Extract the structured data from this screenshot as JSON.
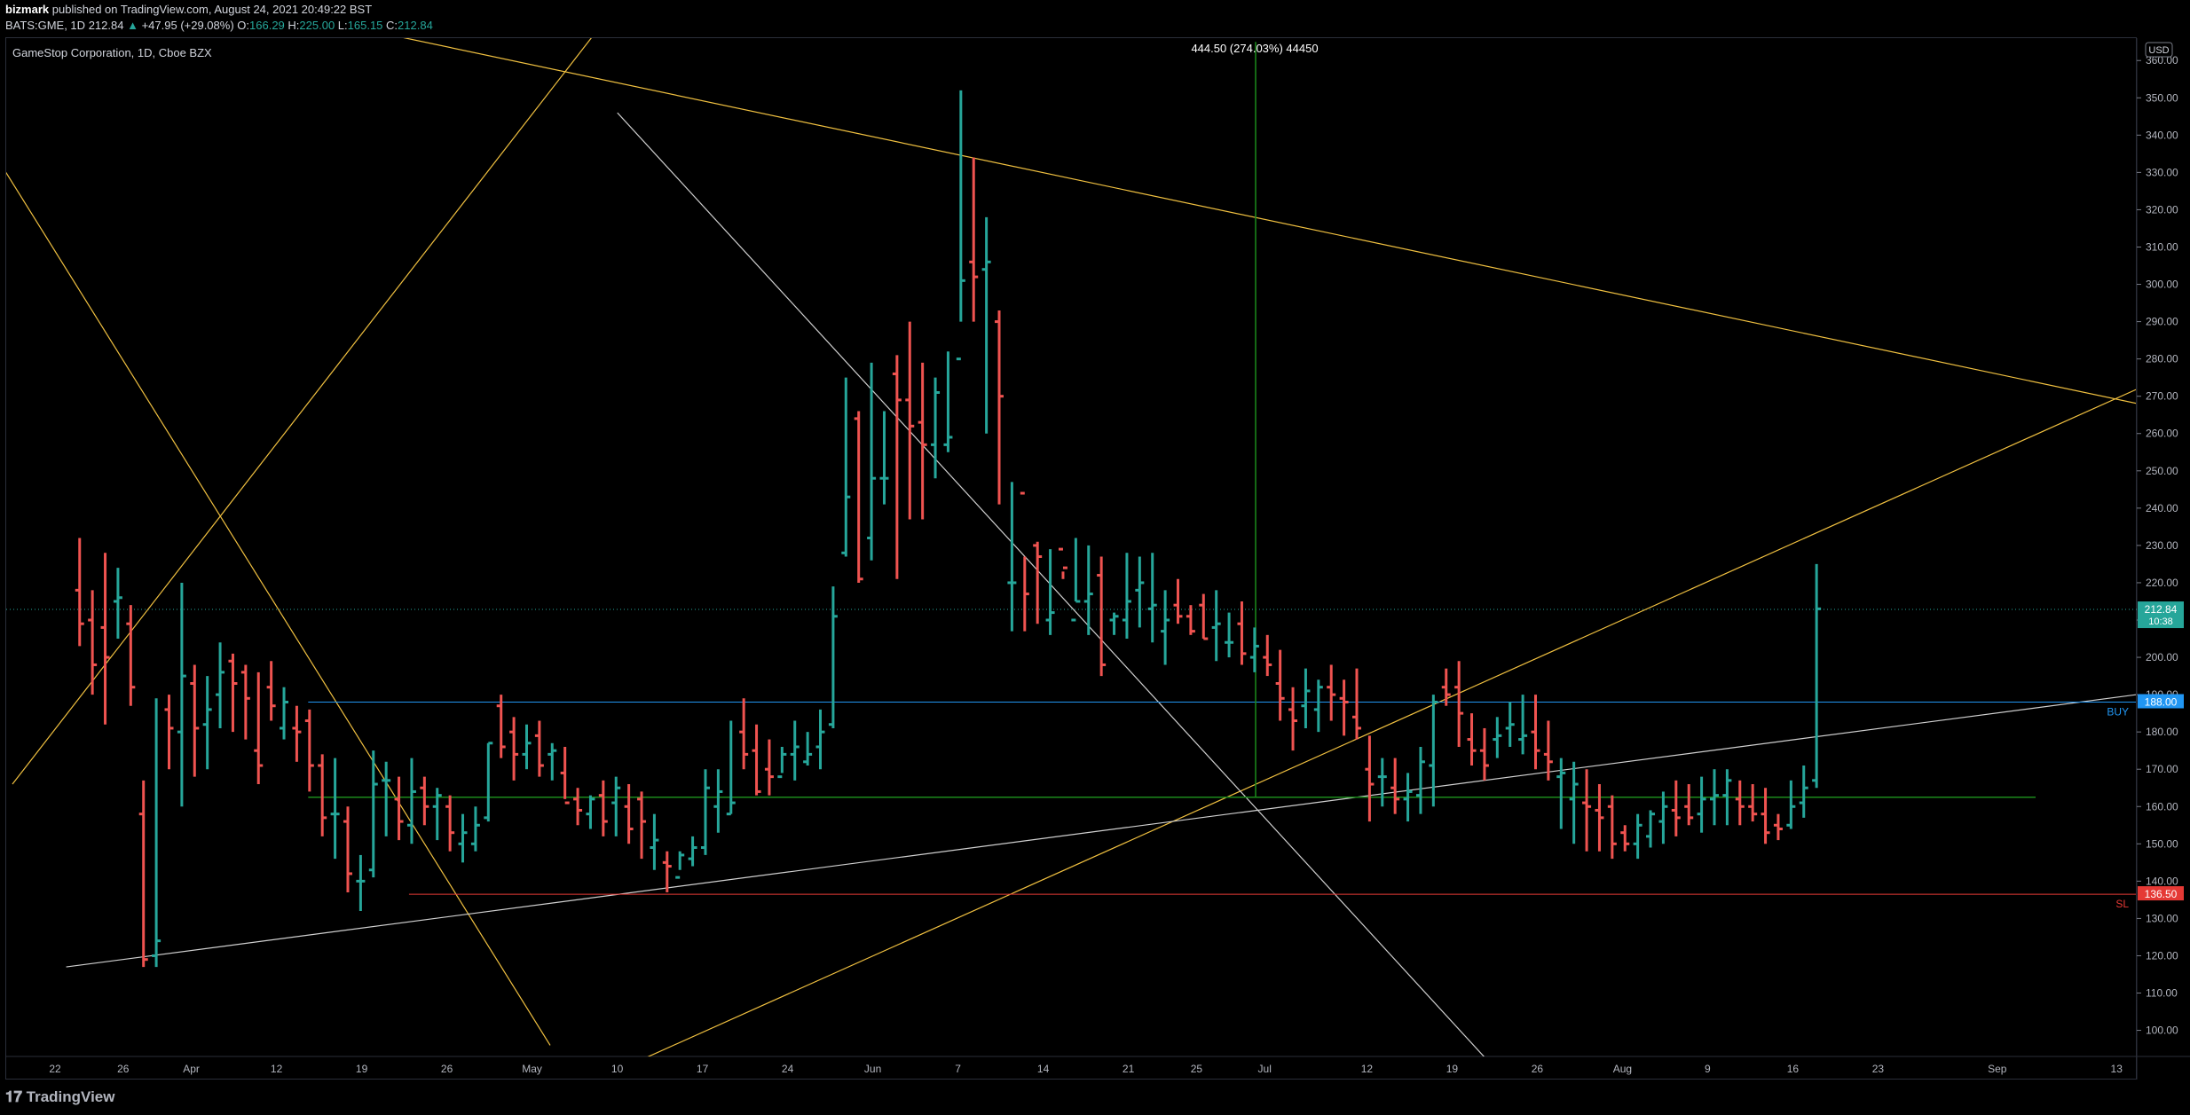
{
  "header": {
    "author": "bizmark",
    "published_text": "published on TradingView.com, August 24, 2021 20:49:22 BST",
    "symbol": "BATS:GME, 1D",
    "last": "212.84",
    "change": "+47.95 (+29.08%)",
    "open_label": "O:",
    "open": "166.29",
    "high_label": "H:",
    "high": "225.00",
    "low_label": "L:",
    "low": "165.15",
    "close_label": "C:",
    "close": "212.84"
  },
  "footer": {
    "brand": "TradingView"
  },
  "chart_data": {
    "type": "ohlc",
    "title": "GameStop Corporation, 1D, Cboe BZX",
    "currency": "USD",
    "yrange": [
      93,
      366
    ],
    "y_ticks": [
      100,
      110,
      120,
      130,
      140,
      150,
      160,
      170,
      180,
      190,
      200,
      210,
      220,
      230,
      240,
      250,
      260,
      270,
      280,
      290,
      300,
      310,
      320,
      330,
      340,
      350,
      360
    ],
    "x_ticks": [
      {
        "label": "22",
        "i": 3
      },
      {
        "label": "26",
        "i": 7
      },
      {
        "label": "Apr",
        "i": 11
      },
      {
        "label": "12",
        "i": 16
      },
      {
        "label": "19",
        "i": 21
      },
      {
        "label": "26",
        "i": 26
      },
      {
        "label": "May",
        "i": 31
      },
      {
        "label": "10",
        "i": 36
      },
      {
        "label": "17",
        "i": 41
      },
      {
        "label": "24",
        "i": 46
      },
      {
        "label": "Jun",
        "i": 51
      },
      {
        "label": "7",
        "i": 56
      },
      {
        "label": "14",
        "i": 61
      },
      {
        "label": "21",
        "i": 66
      },
      {
        "label": "25",
        "i": 70
      },
      {
        "label": "Jul",
        "i": 74
      },
      {
        "label": "12",
        "i": 80
      },
      {
        "label": "19",
        "i": 85
      },
      {
        "label": "26",
        "i": 90
      },
      {
        "label": "Aug",
        "i": 95
      },
      {
        "label": "9",
        "i": 100
      },
      {
        "label": "16",
        "i": 105
      },
      {
        "label": "23",
        "i": 110
      },
      {
        "label": "Sep",
        "i": 117
      },
      {
        "label": "13",
        "i": 124
      }
    ],
    "bars": [
      [
        218,
        232,
        203,
        209
      ],
      [
        210,
        218,
        190,
        198
      ],
      [
        208,
        228,
        182,
        200
      ],
      [
        215,
        224,
        205,
        216
      ],
      [
        209,
        214,
        187,
        192
      ],
      [
        158,
        167,
        117,
        119
      ],
      [
        120,
        189,
        117,
        124
      ],
      [
        186,
        190,
        170,
        181
      ],
      [
        180,
        220,
        160,
        195
      ],
      [
        193,
        198,
        168,
        181
      ],
      [
        182,
        195,
        170,
        186
      ],
      [
        190,
        204,
        181,
        196
      ],
      [
        199,
        201,
        180,
        193
      ],
      [
        196,
        198,
        178,
        189
      ],
      [
        175,
        196,
        166,
        171
      ],
      [
        192,
        199,
        183,
        187
      ],
      [
        181,
        192,
        178,
        188
      ],
      [
        181,
        187,
        172,
        180
      ],
      [
        183,
        186,
        164,
        171
      ],
      [
        171,
        174,
        152,
        157
      ],
      [
        158,
        173,
        146,
        158
      ],
      [
        156,
        160,
        137,
        142
      ],
      [
        140,
        147,
        132,
        140
      ],
      [
        143,
        175,
        141,
        166
      ],
      [
        167,
        172,
        152,
        167
      ],
      [
        162,
        168,
        151,
        156
      ],
      [
        155,
        173,
        150,
        164
      ],
      [
        165,
        168,
        155,
        160
      ],
      [
        160,
        165,
        151,
        163
      ],
      [
        160,
        163,
        148,
        153
      ],
      [
        150,
        158,
        145,
        153
      ],
      [
        150,
        160,
        148,
        155
      ],
      [
        157,
        177,
        156,
        177
      ],
      [
        187,
        190,
        173,
        176
      ],
      [
        180,
        184,
        167,
        174
      ],
      [
        174,
        182,
        170,
        177
      ],
      [
        179,
        183,
        168,
        171
      ],
      [
        174,
        177,
        167,
        175
      ],
      [
        169,
        176,
        162,
        161
      ],
      [
        162,
        165,
        155,
        159
      ],
      [
        158,
        163,
        154,
        162
      ],
      [
        163,
        167,
        152,
        156
      ],
      [
        161,
        168,
        152,
        165
      ],
      [
        160,
        166,
        150,
        154
      ],
      [
        162,
        164,
        146,
        156
      ],
      [
        149,
        158,
        143,
        151
      ],
      [
        145,
        148,
        137,
        144
      ],
      [
        141,
        148,
        143,
        147
      ],
      [
        146,
        152,
        144,
        149
      ],
      [
        149,
        170,
        147,
        165
      ],
      [
        160,
        170,
        153,
        164
      ],
      [
        158,
        183,
        158,
        161
      ],
      [
        180,
        189,
        170,
        174
      ],
      [
        175,
        182,
        163,
        164
      ],
      [
        170,
        178,
        163,
        168
      ],
      [
        168,
        176,
        169,
        174
      ],
      [
        174,
        183,
        167,
        176
      ],
      [
        172,
        180,
        171,
        174
      ],
      [
        176,
        186,
        170,
        180
      ],
      [
        182,
        219,
        181,
        211
      ],
      [
        228,
        275,
        227,
        243
      ],
      [
        264,
        266,
        220,
        221
      ],
      [
        232,
        279,
        226,
        248
      ],
      [
        248,
        266,
        241,
        248
      ],
      [
        276,
        281,
        221,
        269
      ],
      [
        269,
        290,
        237,
        262
      ],
      [
        263,
        279,
        237,
        257
      ],
      [
        257,
        275,
        248,
        271
      ],
      [
        257,
        282,
        255,
        259
      ],
      [
        280,
        352,
        290,
        301
      ],
      [
        306,
        334,
        290,
        302
      ],
      [
        304,
        318,
        260,
        306
      ],
      [
        290,
        293,
        241,
        270
      ],
      [
        220,
        247,
        207,
        220
      ],
      [
        244,
        227,
        207,
        217
      ],
      [
        230,
        231,
        209,
        227
      ],
      [
        210,
        229,
        206,
        212
      ],
      [
        229,
        223,
        221,
        224
      ],
      [
        210,
        232,
        215,
        215
      ],
      [
        215,
        230,
        206,
        217
      ],
      [
        222,
        227,
        195,
        198
      ],
      [
        210,
        212,
        206,
        211
      ],
      [
        210,
        228,
        205,
        215
      ],
      [
        218,
        227,
        208,
        220
      ],
      [
        213,
        228,
        204,
        214
      ],
      [
        207,
        218,
        198,
        210
      ],
      [
        214,
        221,
        209,
        211
      ],
      [
        211,
        214,
        206,
        207
      ],
      [
        214,
        217,
        205,
        205
      ],
      [
        208,
        218,
        199,
        209
      ],
      [
        204,
        212,
        200,
        204
      ],
      [
        209,
        215,
        198,
        201
      ],
      [
        200,
        208,
        196,
        203
      ],
      [
        200,
        206,
        195,
        198
      ],
      [
        193,
        202,
        183,
        189
      ],
      [
        186,
        192,
        175,
        183
      ],
      [
        187,
        197,
        181,
        191
      ],
      [
        186,
        194,
        180,
        192
      ],
      [
        192,
        198,
        183,
        190
      ],
      [
        189,
        194,
        179,
        188
      ],
      [
        184,
        197,
        178,
        181
      ],
      [
        170,
        179,
        156,
        166
      ],
      [
        168,
        173,
        160,
        168
      ],
      [
        165,
        173,
        158,
        162
      ],
      [
        162,
        169,
        156,
        164
      ],
      [
        163,
        176,
        158,
        172
      ],
      [
        171,
        190,
        160,
        188
      ],
      [
        192,
        197,
        187,
        190
      ],
      [
        192,
        199,
        176,
        185
      ],
      [
        178,
        185,
        171,
        175
      ],
      [
        175,
        181,
        167,
        171
      ],
      [
        178,
        184,
        173,
        179
      ],
      [
        181,
        188,
        176,
        182
      ],
      [
        178,
        190,
        174,
        179
      ],
      [
        180,
        190,
        170,
        175
      ],
      [
        174,
        183,
        167,
        172
      ],
      [
        168,
        173,
        154,
        169
      ],
      [
        162,
        172,
        150,
        166
      ],
      [
        161,
        170,
        148,
        160
      ],
      [
        159,
        166,
        148,
        157
      ],
      [
        160,
        163,
        146,
        150
      ],
      [
        153,
        155,
        148,
        150
      ],
      [
        150,
        158,
        146,
        155
      ],
      [
        152,
        159,
        149,
        158
      ],
      [
        156,
        164,
        150,
        160
      ],
      [
        159,
        167,
        152,
        157
      ],
      [
        160,
        166,
        155,
        157
      ],
      [
        158,
        168,
        153,
        162
      ],
      [
        162,
        170,
        155,
        163
      ],
      [
        163,
        170,
        155,
        167
      ],
      [
        162,
        167,
        155,
        160
      ],
      [
        160,
        166,
        156,
        158
      ],
      [
        158,
        165,
        150,
        153
      ],
      [
        155,
        158,
        151,
        154
      ],
      [
        155,
        167,
        154,
        160
      ],
      [
        161,
        171,
        157,
        165
      ],
      [
        167,
        225,
        165,
        213
      ]
    ],
    "price_labels": {
      "current": "212.84",
      "time": "10:38",
      "buy": "188.00",
      "sl": "136.50",
      "usd": "USD"
    },
    "annotations": {
      "measure": "444.50 (274.03%) 44450",
      "buy": "BUY",
      "sl": "SL"
    },
    "colors": {
      "up": "#26a69a",
      "down": "#ef5350",
      "line": "#f0c040",
      "white": "#d0d0d0",
      "buy": "#2196f3",
      "sl": "#e53935",
      "support": "#1b8a1b"
    }
  }
}
